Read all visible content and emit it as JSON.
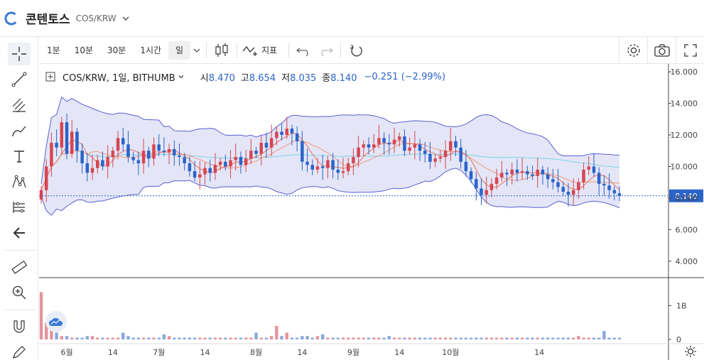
{
  "app": {
    "title": "콘텐토스",
    "pair": "COS/KRW"
  },
  "toolbar": {
    "intervals": [
      "1분",
      "10분",
      "30분",
      "1시간",
      "일"
    ],
    "active_interval": "일",
    "indicator_label": "지표"
  },
  "legend": {
    "symbol": "COS/KRW, 1일, BITHUMB",
    "open_label": "시",
    "open": "8.470",
    "high_label": "고",
    "high": "8.654",
    "low_label": "저",
    "low": "8.035",
    "close_label": "종",
    "close": "8.140",
    "change": "−0.251 (−2.99%)"
  },
  "price_axis": {
    "ticks": [
      "16.000",
      "14.000",
      "12.000",
      "10.000",
      "8.000",
      "6.000",
      "4.000"
    ],
    "current": "8.140"
  },
  "volume_axis": {
    "ticks": [
      "1B",
      "0"
    ]
  },
  "time_axis": [
    "6월",
    "14",
    "7월",
    "14",
    "8월",
    "14",
    "9월",
    "14",
    "10월",
    "14"
  ],
  "colors": {
    "up": "#d64551",
    "down": "#2a63c9",
    "band_fill": "#d9dcf3",
    "band_line": "#5a5fd0",
    "ma_short": "#e8735a",
    "ma_mid": "#f09a7a",
    "ma_long": "#7fd1e8"
  },
  "chart_data": {
    "type": "candlestick",
    "ylim": [
      3,
      16.5
    ],
    "closes": [
      8.5,
      10.0,
      11.5,
      11.2,
      12.8,
      10.8,
      12.2,
      11.0,
      10.2,
      9.6,
      9.9,
      10.4,
      10.0,
      10.6,
      11.0,
      11.8,
      11.4,
      10.6,
      10.4,
      10.2,
      11.0,
      10.5,
      11.4,
      11.0,
      10.9,
      11.1,
      10.7,
      10.6,
      10.2,
      9.7,
      9.3,
      9.5,
      9.9,
      9.6,
      10.1,
      10.3,
      10.0,
      10.4,
      10.6,
      10.1,
      10.5,
      11.0,
      10.8,
      11.5,
      11.2,
      11.8,
      12.2,
      12.0,
      12.4,
      12.1,
      11.6,
      10.3,
      10.1,
      9.8,
      10.0,
      9.9,
      10.4,
      9.8,
      9.6,
      9.7,
      10.2,
      10.6,
      11.2,
      11.4,
      11.2,
      11.4,
      11.8,
      11.5,
      11.4,
      11.7,
      11.9,
      11.0,
      11.2,
      11.4,
      11.0,
      10.8,
      10.3,
      10.5,
      10.6,
      11.0,
      11.6,
      11.2,
      10.3,
      9.7,
      9.2,
      8.6,
      8.2,
      8.5,
      8.9,
      9.3,
      9.6,
      9.5,
      9.8,
      9.6,
      9.7,
      9.5,
      9.4,
      9.8,
      9.5,
      9.2,
      9.0,
      8.7,
      8.4,
      8.2,
      8.5,
      9.0,
      9.8,
      10.0,
      9.6,
      8.9,
      8.8,
      8.5,
      8.3,
      8.14
    ],
    "volumes": [
      1.4,
      0.5,
      0.3,
      0.2,
      0.1,
      0.1,
      0.05,
      0.05,
      0.05,
      0.1,
      0.1,
      0.05,
      0.05,
      0.05,
      0.05,
      0.05,
      0.2,
      0.1,
      0.05,
      0.05,
      0.05,
      0.05,
      0.05,
      0.05,
      0.15,
      0.1,
      0.05,
      0.05,
      0.05,
      0.05,
      0.05,
      0.05,
      0.05,
      0.05,
      0.05,
      0.05,
      0.05,
      0.05,
      0.05,
      0.05,
      0.05,
      0.05,
      0.2,
      0.05,
      0.05,
      0.1,
      0.4,
      0.1,
      0.2,
      0.05,
      0.05,
      0.1,
      0.1,
      0.05,
      0.1,
      0.15,
      0.05,
      0.05,
      0.05,
      0.05,
      0.05,
      0.05,
      0.05,
      0.05,
      0.05,
      0.05,
      0.05,
      0.05,
      0.1,
      0.05,
      0.05,
      0.05,
      0.05,
      0.05,
      0.05,
      0.05,
      0.05,
      0.05,
      0.05,
      0.05,
      0.05,
      0.05,
      0.05,
      0.05,
      0.05,
      0.05,
      0.05,
      0.05,
      0.05,
      0.05,
      0.05,
      0.05,
      0.05,
      0.05,
      0.05,
      0.05,
      0.05,
      0.05,
      0.05,
      0.05,
      0.05,
      0.05,
      0.05,
      0.05,
      0.05,
      0.1,
      0.05,
      0.05,
      0.05,
      0.05,
      0.25,
      0.05,
      0.05,
      0.05
    ]
  }
}
